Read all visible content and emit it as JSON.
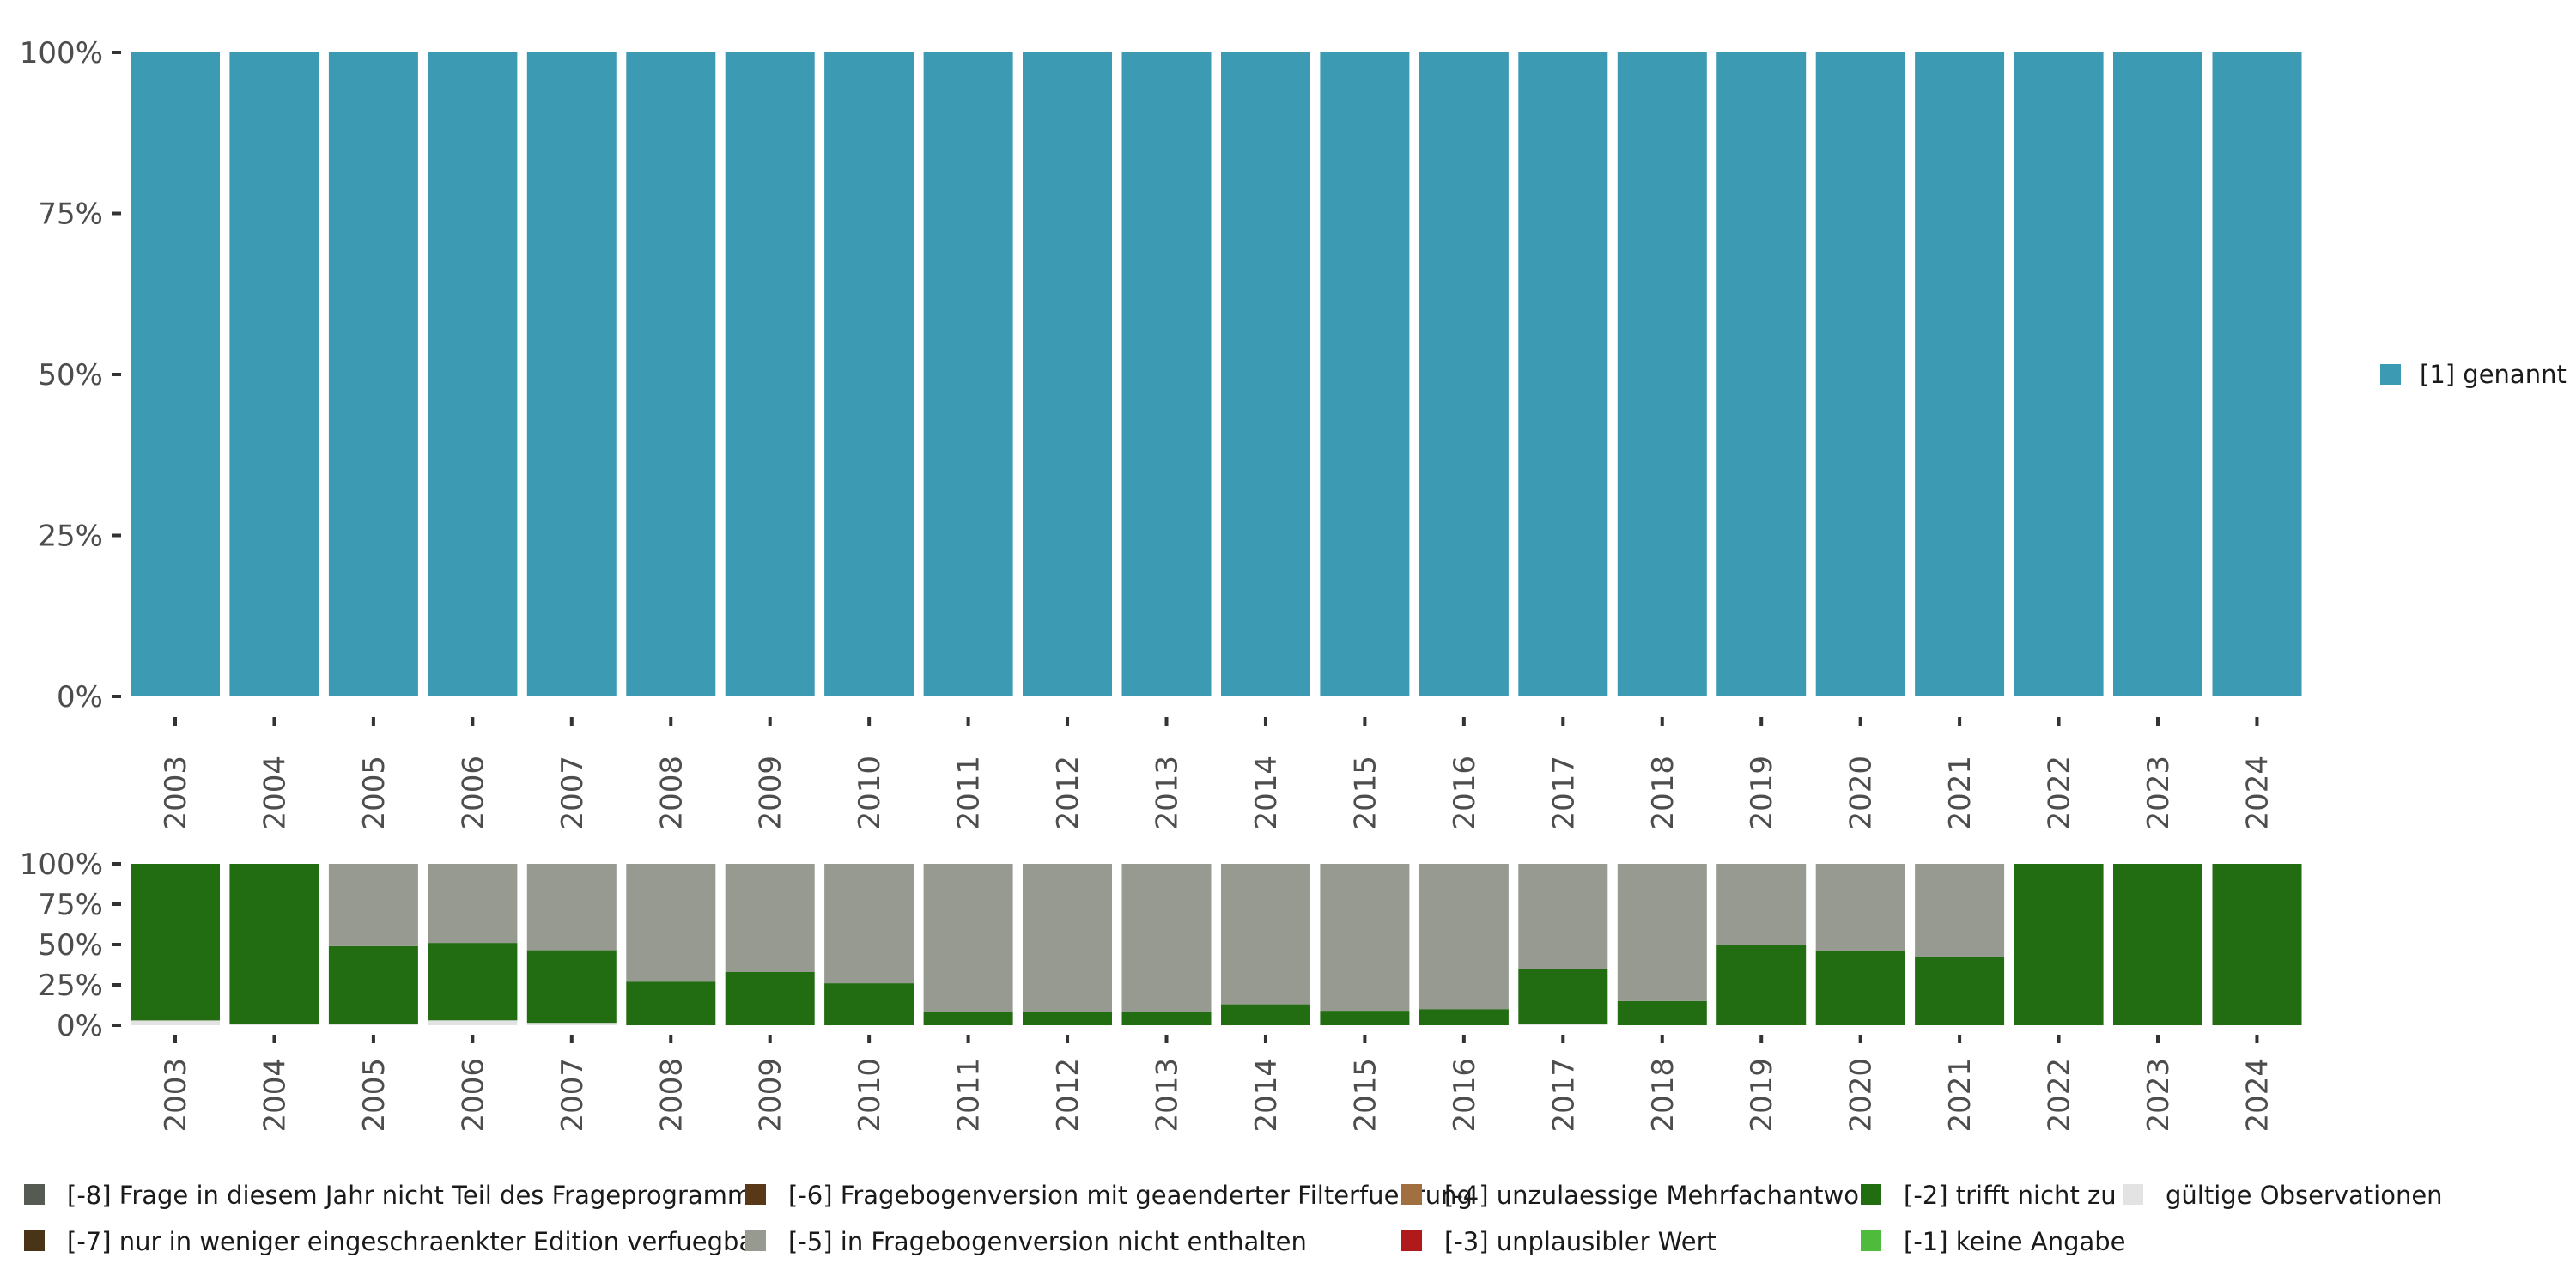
{
  "chart_data": [
    {
      "type": "bar",
      "stacked": true,
      "title": "",
      "xlabel": "",
      "ylabel": "",
      "ylim": [
        0,
        100
      ],
      "y_ticks": [
        "0%",
        "25%",
        "50%",
        "75%",
        "100%"
      ],
      "categories": [
        "2003",
        "2004",
        "2005",
        "2006",
        "2007",
        "2008",
        "2009",
        "2010",
        "2011",
        "2012",
        "2013",
        "2014",
        "2015",
        "2016",
        "2017",
        "2018",
        "2019",
        "2020",
        "2021",
        "2022",
        "2023",
        "2024"
      ],
      "series": [
        {
          "name": "[1] genannt",
          "color": "#3c9ab3",
          "values": [
            100,
            100,
            100,
            100,
            100,
            100,
            100,
            100,
            100,
            100,
            100,
            100,
            100,
            100,
            100,
            100,
            100,
            100,
            100,
            100,
            100,
            100
          ]
        }
      ],
      "legend": {
        "position": "right",
        "entries": [
          "[1] genannt"
        ]
      }
    },
    {
      "type": "bar",
      "stacked": true,
      "title": "",
      "xlabel": "",
      "ylabel": "",
      "ylim": [
        0,
        100
      ],
      "y_ticks": [
        "0%",
        "25%",
        "50%",
        "75%",
        "100%"
      ],
      "categories": [
        "2003",
        "2004",
        "2005",
        "2006",
        "2007",
        "2008",
        "2009",
        "2010",
        "2011",
        "2012",
        "2013",
        "2014",
        "2015",
        "2016",
        "2017",
        "2018",
        "2019",
        "2020",
        "2021",
        "2022",
        "2023",
        "2024"
      ],
      "series": [
        {
          "name": "gültige Observationen",
          "color": "#e3e3e3",
          "values": [
            3,
            1,
            1,
            3,
            1.5,
            0,
            0,
            0,
            0,
            0,
            0,
            0,
            0,
            0,
            1,
            0,
            0,
            0,
            0,
            0,
            0,
            0
          ]
        },
        {
          "name": "[-2] trifft nicht zu",
          "color": "#226c11",
          "values": [
            97,
            99,
            48,
            48,
            45,
            27,
            33,
            26,
            8,
            8,
            8,
            13,
            9,
            10,
            34,
            15,
            50,
            46,
            42,
            100,
            100,
            100
          ]
        },
        {
          "name": "[-5] in Fragebogenversion nicht enthalten",
          "color": "#969a91",
          "values": [
            0,
            0,
            51,
            49,
            53.5,
            73,
            67,
            74,
            92,
            92,
            92,
            87,
            91,
            90,
            65,
            85,
            50,
            54,
            58,
            0,
            0,
            0
          ]
        }
      ],
      "legend": {
        "position": "bottom",
        "entries": [
          {
            "label": "[-8] Frage in diesem Jahr nicht Teil des Frageprogramms",
            "color": "#555a53"
          },
          {
            "label": "[-7] nur in weniger eingeschraenkter Edition verfuegbar",
            "color": "#4a3418"
          },
          {
            "label": "[-6] Fragebogenversion mit geaenderter Filterfuehrung",
            "color": "#593818"
          },
          {
            "label": "[-5] in Fragebogenversion nicht enthalten",
            "color": "#969a91"
          },
          {
            "label": "[-4] unzulaessige Mehrfachantwort",
            "color": "#a07040"
          },
          {
            "label": "[-3] unplausibler Wert",
            "color": "#b11a1a"
          },
          {
            "label": "[-2] trifft nicht zu",
            "color": "#226c11"
          },
          {
            "label": "[-1] keine Angabe",
            "color": "#4fbb3c"
          },
          {
            "label": "gültige Observationen",
            "color": "#e3e3e3"
          }
        ]
      }
    }
  ]
}
